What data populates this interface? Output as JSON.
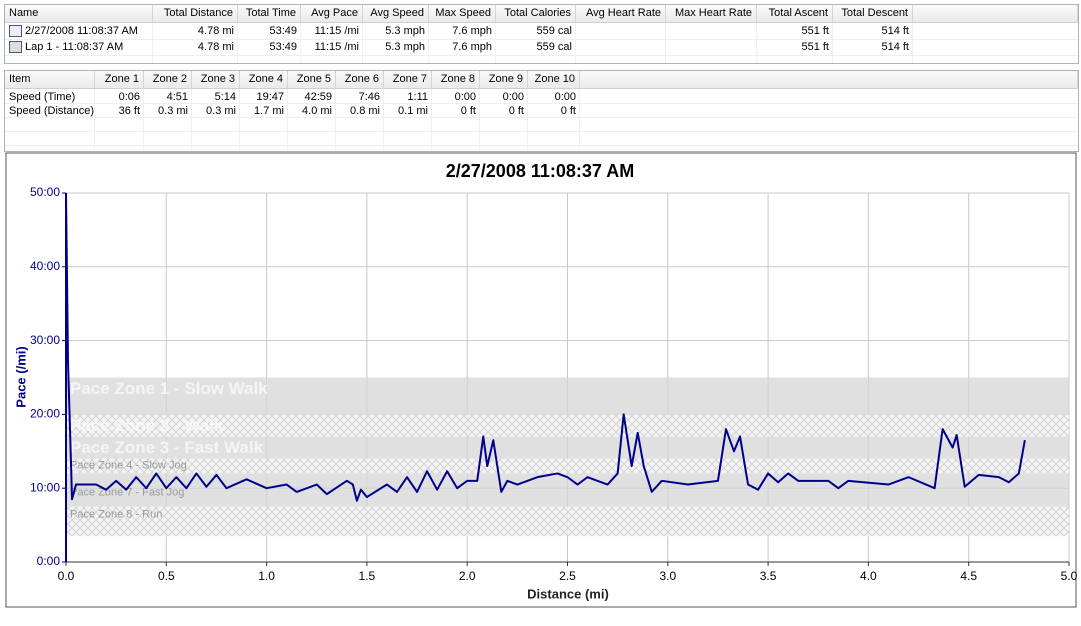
{
  "summary_table": {
    "columns": [
      "Name",
      "Total Distance",
      "Total Time",
      "Avg Pace",
      "Avg Speed",
      "Max Speed",
      "Total Calories",
      "Avg Heart Rate",
      "Max Heart Rate",
      "Total Ascent",
      "Total Descent"
    ],
    "rows": [
      [
        "2/27/2008 11:08:37 AM",
        "4.78 mi",
        "53:49",
        "11:15 /mi",
        "5.3 mph",
        "7.6 mph",
        "559 cal",
        null,
        null,
        "551 ft",
        "514 ft"
      ],
      [
        "Lap 1 - 11:08:37 AM",
        "4.78 mi",
        "53:49",
        "11:15 /mi",
        "5.3 mph",
        "7.6 mph",
        "559 cal",
        null,
        null,
        "551 ft",
        "514 ft"
      ]
    ]
  },
  "zones_table": {
    "columns": [
      "Item",
      "Zone 1",
      "Zone 2",
      "Zone 3",
      "Zone 4",
      "Zone 5",
      "Zone 6",
      "Zone 7",
      "Zone 8",
      "Zone 9",
      "Zone 10"
    ],
    "rows": [
      [
        "Speed (Time)",
        "0:06",
        "4:51",
        "5:14",
        "19:47",
        "42:59",
        "7:46",
        "1:11",
        "0:00",
        "0:00",
        "0:00"
      ],
      [
        "Speed (Distance)",
        "36 ft",
        "0.3 mi",
        "0.3 mi",
        "1.7 mi",
        "4.0 mi",
        "0.8 mi",
        "0.1 mi",
        "0 ft",
        "0 ft",
        "0 ft"
      ]
    ]
  },
  "chart_data": {
    "type": "line",
    "title": "2/27/2008 11:08:37 AM",
    "x_label": "Distance (mi)",
    "y_label": "Pace (/mi)",
    "xlim": [
      0,
      5
    ],
    "ylim": [
      0,
      50
    ],
    "grid": true,
    "xticks": [
      {
        "value": 0,
        "label": "0.0"
      },
      0.5,
      {
        "value": 1,
        "label": "1.0"
      },
      1.5,
      {
        "value": 2,
        "label": "2.0"
      },
      2.5,
      {
        "value": 3,
        "label": "3.0"
      },
      3.5,
      {
        "value": 4,
        "label": "4.0"
      },
      4.5,
      {
        "value": 5,
        "label": "5.0"
      }
    ],
    "yticks": [
      {
        "value": 0,
        "label": "0:00"
      },
      {
        "value": 10,
        "label": "10:00"
      },
      {
        "value": 20,
        "label": "20:00"
      },
      {
        "value": 30,
        "label": "30:00"
      },
      {
        "value": 40,
        "label": "40:00"
      },
      {
        "value": 50,
        "label": "50:00"
      }
    ],
    "zones": [
      {
        "name": "Pace Zone 1 - Slow Walk",
        "low": 20,
        "high": 25,
        "pattern": "solid"
      },
      {
        "name": "Pace Zone 2 - Walk",
        "low": 17,
        "high": 20,
        "pattern": "hatch"
      },
      {
        "name": "Pace Zone 3 - Fast Walk",
        "low": 14,
        "high": 17,
        "pattern": "solid"
      },
      {
        "name": "Pace Zone 4 - Slow Jog",
        "low": 12,
        "high": 14,
        "pattern": "hatch"
      },
      {
        "name": "Pace Zone 7 - Fast Jog",
        "low": 7.5,
        "high": 12,
        "pattern": "solid"
      },
      {
        "name": "Pace Zone 8 - Run",
        "low": 3.5,
        "high": 7.5,
        "pattern": "hatch"
      }
    ],
    "x": [
      0,
      0.01,
      0.02,
      0.03,
      0.05,
      0.15,
      0.2,
      0.25,
      0.3,
      0.35,
      0.4,
      0.45,
      0.5,
      0.55,
      0.6,
      0.65,
      0.7,
      0.75,
      0.8,
      0.9,
      1.0,
      1.1,
      1.15,
      1.25,
      1.3,
      1.4,
      1.43,
      1.45,
      1.47,
      1.5,
      1.6,
      1.65,
      1.7,
      1.75,
      1.8,
      1.85,
      1.9,
      1.95,
      2.0,
      2.05,
      2.08,
      2.1,
      2.13,
      2.17,
      2.2,
      2.25,
      2.35,
      2.45,
      2.5,
      2.55,
      2.6,
      2.7,
      2.75,
      2.78,
      2.82,
      2.85,
      2.88,
      2.92,
      2.97,
      3.1,
      3.25,
      3.29,
      3.33,
      3.36,
      3.4,
      3.45,
      3.5,
      3.55,
      3.6,
      3.65,
      3.8,
      3.85,
      3.9,
      4.1,
      4.2,
      4.33,
      4.37,
      4.42,
      4.44,
      4.48,
      4.55,
      4.65,
      4.7,
      4.75,
      4.78
    ],
    "series": [
      {
        "name": "Pace",
        "color": "#00008b",
        "values": [
          50,
          27,
          18,
          8.5,
          10.5,
          10.5,
          9.8,
          11,
          9.8,
          11.5,
          10,
          12,
          10,
          11.5,
          10,
          12,
          10.2,
          11.8,
          10,
          11.2,
          10,
          10.5,
          9.5,
          10.5,
          9.2,
          11,
          10.5,
          8.3,
          9.8,
          8.8,
          10.5,
          9.5,
          11.5,
          9.5,
          12.3,
          9.8,
          12.3,
          10,
          11,
          11,
          17,
          13,
          16.5,
          9.5,
          11,
          10.5,
          11.5,
          12,
          11.5,
          10.5,
          11.5,
          10.5,
          12,
          20,
          13,
          17.5,
          13,
          9.5,
          11,
          10.5,
          11,
          18,
          15,
          17,
          10.5,
          9.8,
          12,
          10.8,
          12,
          11,
          11,
          10,
          11,
          10.5,
          11.5,
          10,
          18,
          15.5,
          17.2,
          10.2,
          11.8,
          11.5,
          10.8,
          12,
          16.5
        ]
      }
    ]
  }
}
